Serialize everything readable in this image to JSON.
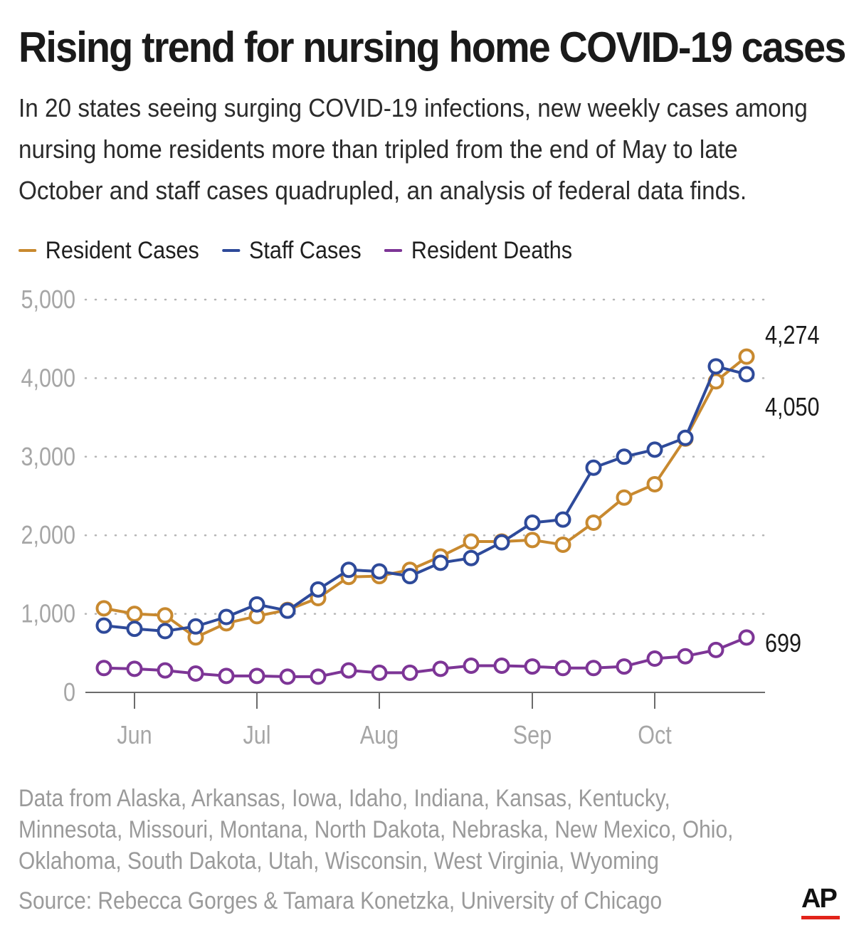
{
  "header": {
    "title": "Rising trend for nursing home COVID-19 cases",
    "subtitle": "In 20 states seeing surging COVID-19 infections, new weekly cases among nursing home residents more than tripled from the end of May to late October and staff cases quadrupled, an analysis of federal data finds."
  },
  "legend": {
    "resident_cases": "Resident Cases",
    "staff_cases": "Staff Cases",
    "resident_deaths": "Resident Deaths"
  },
  "colors": {
    "resident_cases": "#c8892f",
    "staff_cases": "#2e4a9a",
    "resident_deaths": "#7d3596",
    "gridline": "#b5b5b5",
    "axis_text": "#a6a6a6"
  },
  "chart_data": {
    "type": "line",
    "ylim": [
      0,
      5000
    ],
    "yticks": [
      0,
      1000,
      2000,
      3000,
      4000,
      5000
    ],
    "ytick_labels": [
      "0",
      "1,000",
      "2,000",
      "3,000",
      "4,000",
      "5,000"
    ],
    "grid": "horizontal dotted",
    "legend_position": "top-left",
    "x_weeks": 22,
    "month_ticks": [
      {
        "label": "Jun",
        "week": 1.0
      },
      {
        "label": "Jul",
        "week": 5.0
      },
      {
        "label": "Aug",
        "week": 9.0
      },
      {
        "label": "Sep",
        "week": 14.0
      },
      {
        "label": "Oct",
        "week": 18.0
      }
    ],
    "series": [
      {
        "key": "resident_cases",
        "name": "Resident Cases",
        "values": [
          1070,
          1000,
          980,
          700,
          880,
          970,
          1050,
          1200,
          1470,
          1480,
          1560,
          1730,
          1920,
          1920,
          1940,
          1880,
          2160,
          2480,
          2650,
          3230,
          3960,
          4274
        ]
      },
      {
        "key": "staff_cases",
        "name": "Staff Cases",
        "values": [
          850,
          810,
          780,
          840,
          960,
          1120,
          1040,
          1310,
          1560,
          1540,
          1480,
          1650,
          1710,
          1910,
          2160,
          2200,
          2860,
          3000,
          3090,
          3240,
          4150,
          4050
        ]
      },
      {
        "key": "resident_deaths",
        "name": "Resident Deaths",
        "values": [
          310,
          300,
          280,
          240,
          210,
          210,
          200,
          200,
          280,
          250,
          250,
          300,
          340,
          340,
          330,
          310,
          310,
          330,
          430,
          460,
          540,
          699
        ]
      }
    ],
    "end_labels": [
      {
        "series": "resident_cases",
        "text": "4,274"
      },
      {
        "series": "staff_cases",
        "text": "4,050"
      },
      {
        "series": "resident_deaths",
        "text": "699"
      }
    ]
  },
  "footer": {
    "note": "Data from Alaska, Arkansas, Iowa, Idaho, Indiana, Kansas, Kentucky, Minnesota, Missouri, Montana, North Dakota, Nebraska, New Mexico, Ohio, Oklahoma, South Dakota, Utah, Wisconsin, West Virginia, Wyoming",
    "source": "Source: Rebecca Gorges & Tamara Konetzka, University of Chicago",
    "logo_text": "AP"
  }
}
